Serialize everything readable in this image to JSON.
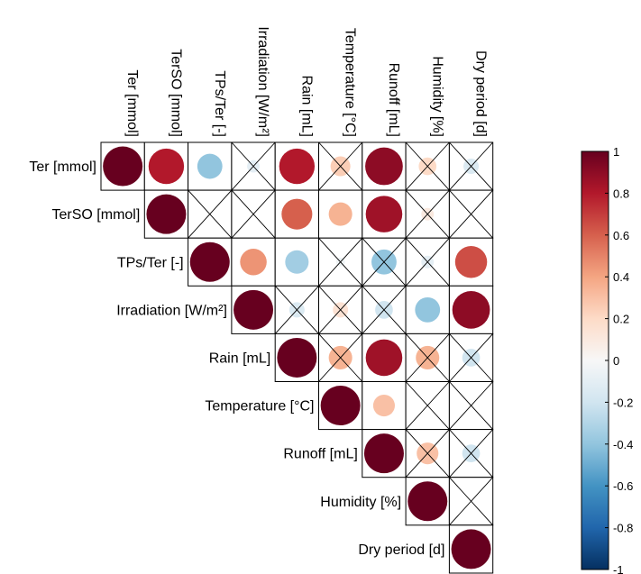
{
  "chart_data": {
    "type": "heatmap",
    "subtype": "correlation-matrix-upper-triangle-circles",
    "variables": [
      "Ter [mmol]",
      "TerSO [mmol]",
      "TPs/Ter [-]",
      "Irradiation [W/m²]",
      "Rain [mL]",
      "Temperature [°C]",
      "Runoff [mL]",
      "Humidity [%]",
      "Dry period [d]"
    ],
    "cells": [
      {
        "row": 0,
        "col": 0,
        "value": 1.0,
        "crossed": false
      },
      {
        "row": 0,
        "col": 1,
        "value": 0.8,
        "crossed": false
      },
      {
        "row": 0,
        "col": 2,
        "value": -0.4,
        "crossed": false
      },
      {
        "row": 0,
        "col": 3,
        "value": -0.1,
        "crossed": true
      },
      {
        "row": 0,
        "col": 4,
        "value": 0.8,
        "crossed": false
      },
      {
        "row": 0,
        "col": 5,
        "value": 0.25,
        "crossed": true
      },
      {
        "row": 0,
        "col": 6,
        "value": 0.9,
        "crossed": false
      },
      {
        "row": 0,
        "col": 7,
        "value": 0.2,
        "crossed": true
      },
      {
        "row": 0,
        "col": 8,
        "value": -0.15,
        "crossed": true
      },
      {
        "row": 1,
        "col": 1,
        "value": 1.0,
        "crossed": false
      },
      {
        "row": 1,
        "col": 2,
        "value": 0.0,
        "crossed": true
      },
      {
        "row": 1,
        "col": 3,
        "value": 0.0,
        "crossed": true
      },
      {
        "row": 1,
        "col": 4,
        "value": 0.6,
        "crossed": false
      },
      {
        "row": 1,
        "col": 5,
        "value": 0.35,
        "crossed": false
      },
      {
        "row": 1,
        "col": 6,
        "value": 0.85,
        "crossed": false
      },
      {
        "row": 1,
        "col": 7,
        "value": 0.1,
        "crossed": true
      },
      {
        "row": 1,
        "col": 8,
        "value": 0.0,
        "crossed": true
      },
      {
        "row": 2,
        "col": 2,
        "value": 1.0,
        "crossed": false
      },
      {
        "row": 2,
        "col": 3,
        "value": 0.45,
        "crossed": false
      },
      {
        "row": 2,
        "col": 4,
        "value": -0.35,
        "crossed": false
      },
      {
        "row": 2,
        "col": 5,
        "value": -0.05,
        "crossed": true
      },
      {
        "row": 2,
        "col": 6,
        "value": -0.4,
        "crossed": true
      },
      {
        "row": 2,
        "col": 7,
        "value": -0.1,
        "crossed": true
      },
      {
        "row": 2,
        "col": 8,
        "value": 0.65,
        "crossed": false
      },
      {
        "row": 3,
        "col": 3,
        "value": 1.0,
        "crossed": false
      },
      {
        "row": 3,
        "col": 4,
        "value": -0.15,
        "crossed": true
      },
      {
        "row": 3,
        "col": 5,
        "value": 0.15,
        "crossed": true
      },
      {
        "row": 3,
        "col": 6,
        "value": -0.2,
        "crossed": true
      },
      {
        "row": 3,
        "col": 7,
        "value": -0.4,
        "crossed": false
      },
      {
        "row": 3,
        "col": 8,
        "value": 0.9,
        "crossed": false
      },
      {
        "row": 4,
        "col": 4,
        "value": 1.0,
        "crossed": false
      },
      {
        "row": 4,
        "col": 5,
        "value": 0.35,
        "crossed": true
      },
      {
        "row": 4,
        "col": 6,
        "value": 0.85,
        "crossed": false
      },
      {
        "row": 4,
        "col": 7,
        "value": 0.35,
        "crossed": true
      },
      {
        "row": 4,
        "col": 8,
        "value": -0.2,
        "crossed": true
      },
      {
        "row": 5,
        "col": 5,
        "value": 1.0,
        "crossed": false
      },
      {
        "row": 5,
        "col": 6,
        "value": 0.3,
        "crossed": false
      },
      {
        "row": 5,
        "col": 7,
        "value": 0.0,
        "crossed": true
      },
      {
        "row": 5,
        "col": 8,
        "value": 0.0,
        "crossed": true
      },
      {
        "row": 6,
        "col": 6,
        "value": 1.0,
        "crossed": false
      },
      {
        "row": 6,
        "col": 7,
        "value": 0.3,
        "crossed": true
      },
      {
        "row": 6,
        "col": 8,
        "value": -0.2,
        "crossed": true
      },
      {
        "row": 7,
        "col": 7,
        "value": 1.0,
        "crossed": false
      },
      {
        "row": 7,
        "col": 8,
        "value": 0.0,
        "crossed": true
      },
      {
        "row": 8,
        "col": 8,
        "value": 1.0,
        "crossed": false
      }
    ],
    "colorbar": {
      "range": [
        -1,
        1
      ],
      "ticks": [
        "1",
        "0.8",
        "0.6",
        "0.4",
        "0.2",
        "0",
        "-0.2",
        "-0.4",
        "-0.6",
        "-0.8",
        "-1"
      ],
      "tick_values": [
        1,
        0.8,
        0.6,
        0.4,
        0.2,
        0,
        -0.2,
        -0.4,
        -0.6,
        -0.8,
        -1
      ],
      "colormap": "diverging red-blue",
      "colors": {
        "positive_max": "#67001f",
        "zero": "#f7f7f7",
        "negative_max": "#053061"
      }
    }
  }
}
